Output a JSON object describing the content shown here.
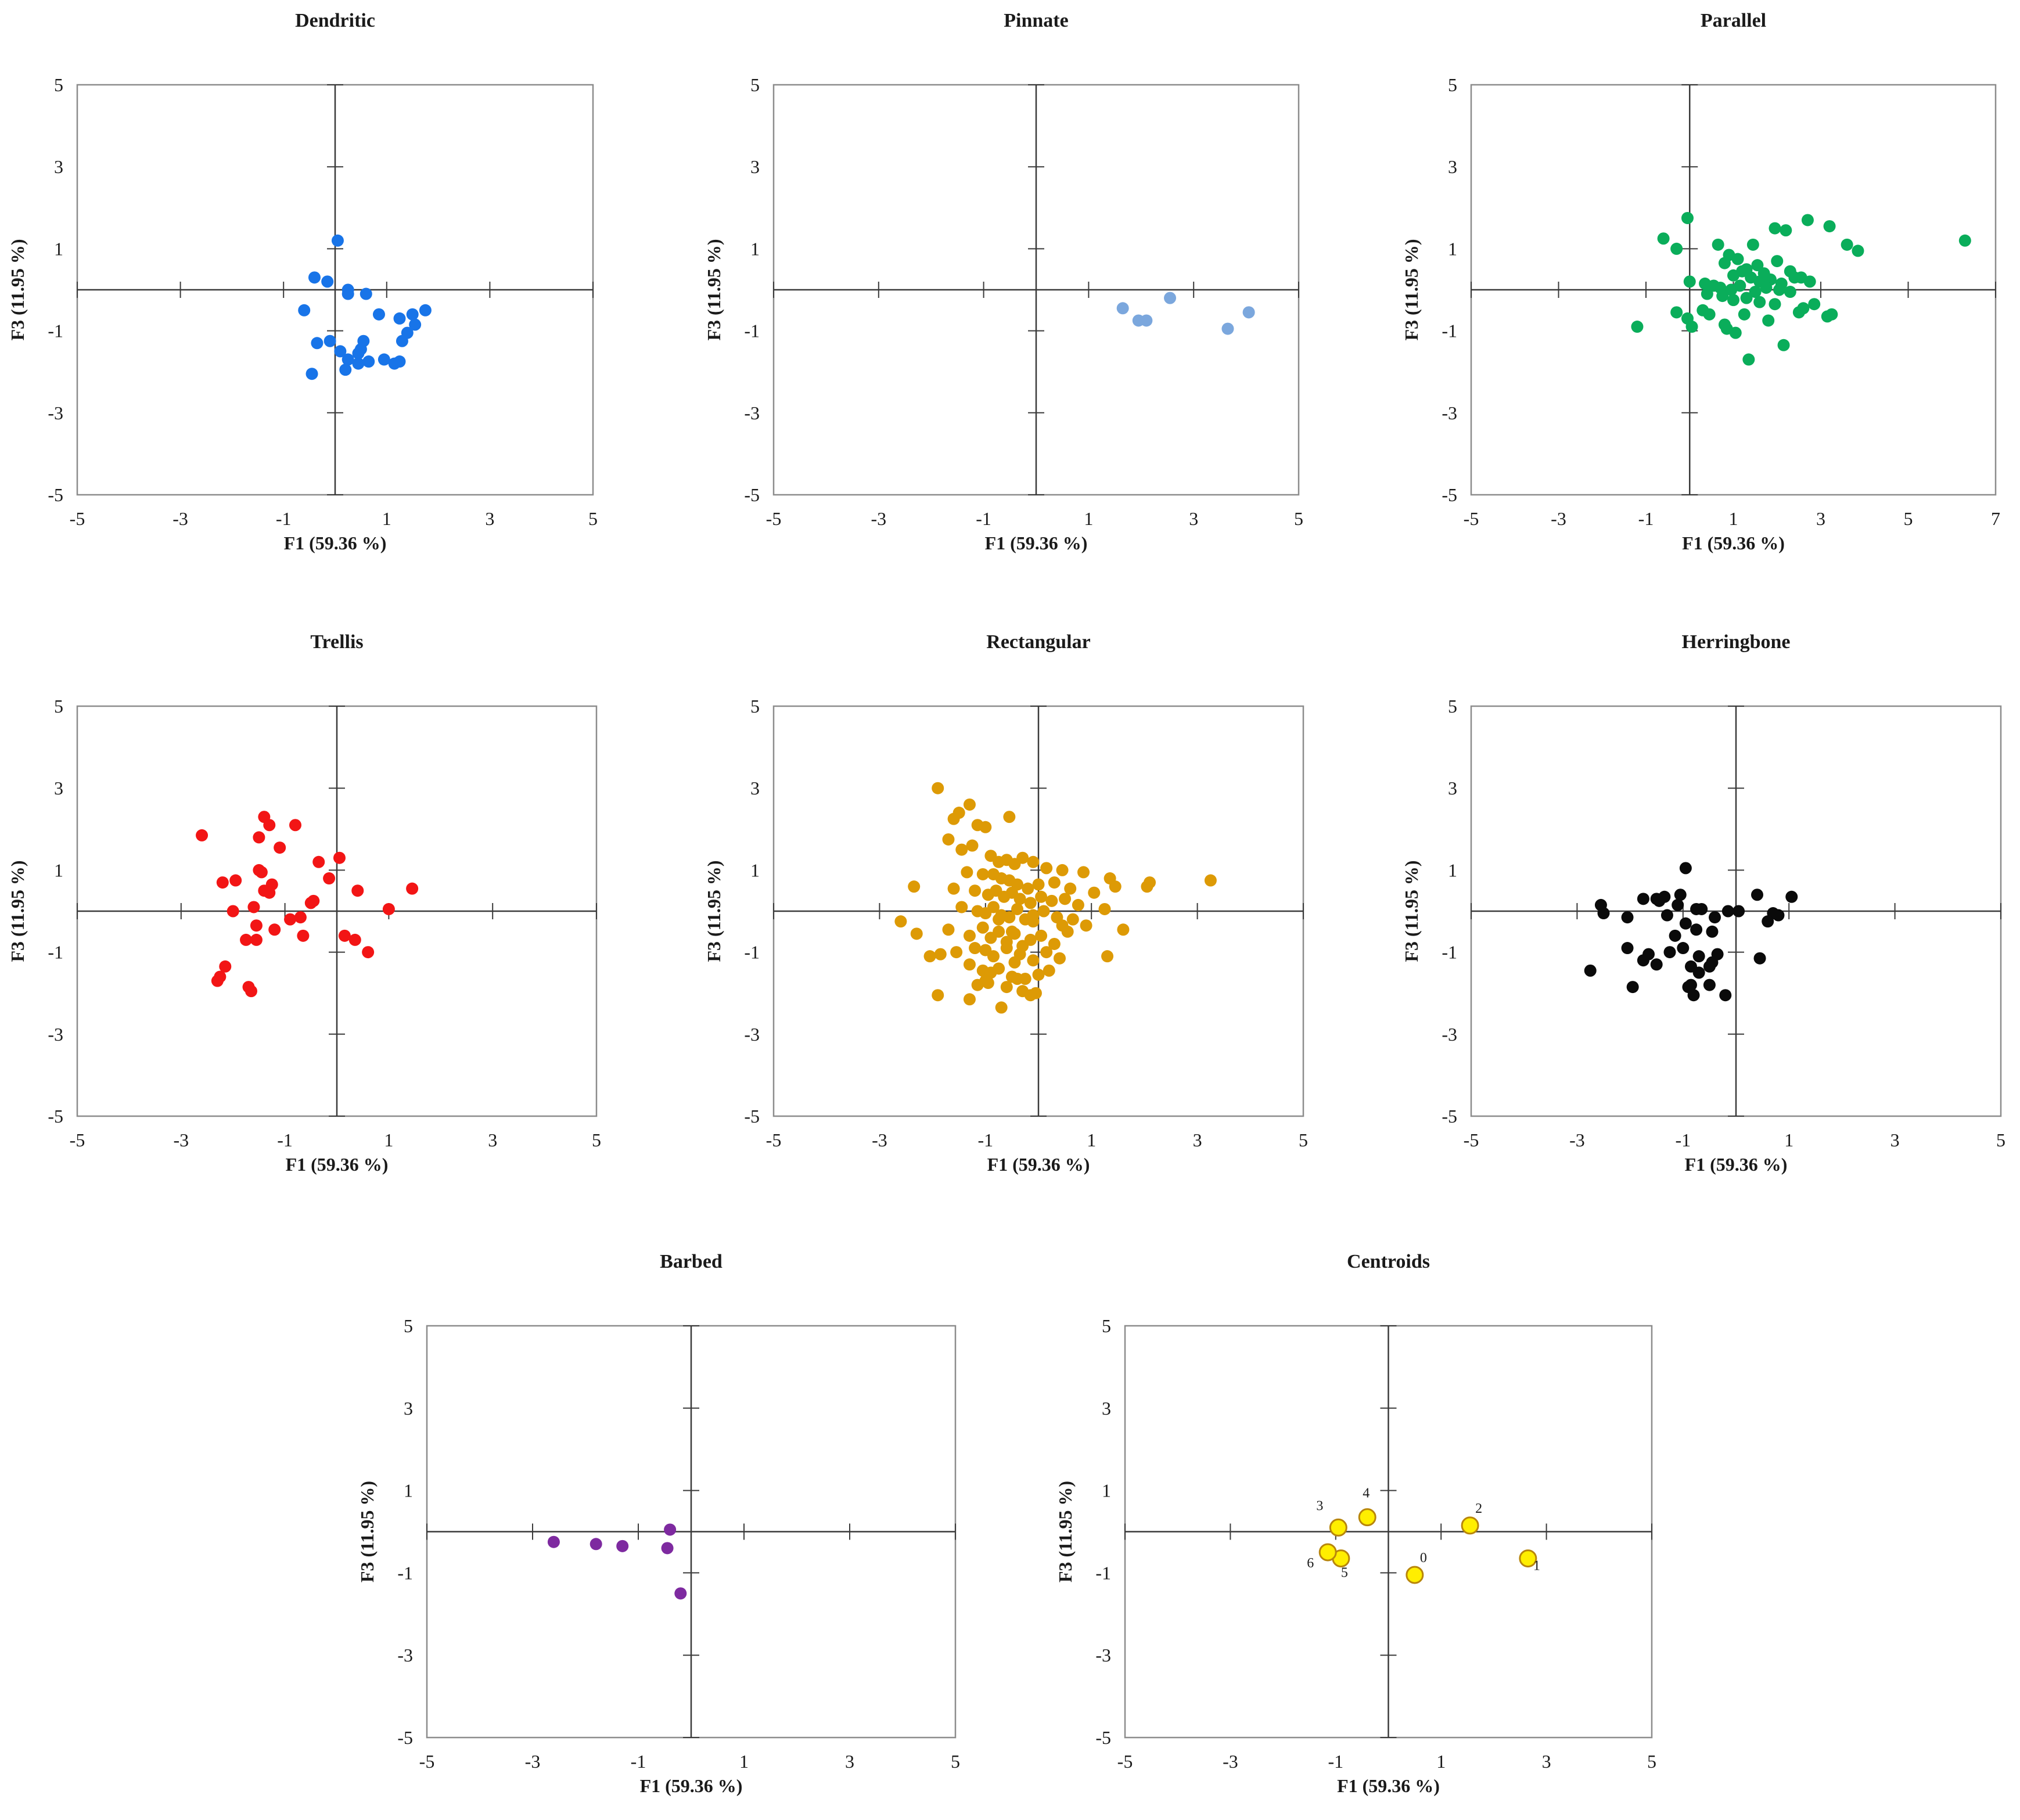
{
  "chart_data": [
    {
      "type": "scatter",
      "title": "Dendritic",
      "xlabel": "F1 (59.36 %)",
      "ylabel": "F3 (11.95 %)",
      "xlim": [
        -5,
        5
      ],
      "ylim": [
        -5,
        5
      ],
      "xticks": [
        "-5",
        "-3",
        "-1",
        "1",
        "3",
        "5"
      ],
      "yticks": [
        "5",
        "3",
        "1",
        "-1",
        "-3",
        "-5"
      ],
      "color": "#1874e8",
      "x": [
        0.05,
        -0.4,
        -0.15,
        0.25,
        0.25,
        -0.6,
        0.6,
        0.85,
        1.5,
        1.75,
        1.25,
        1.55,
        1.4,
        1.3,
        -0.35,
        -0.1,
        0.1,
        0.5,
        0.45,
        0.55,
        0.25,
        0.45,
        0.65,
        0.95,
        1.15,
        1.25,
        0.2,
        -0.45
      ],
      "y": [
        1.2,
        0.3,
        0.2,
        0.0,
        -0.1,
        -0.5,
        -0.1,
        -0.6,
        -0.6,
        -0.5,
        -0.7,
        -0.85,
        -1.05,
        -1.25,
        -1.3,
        -1.25,
        -1.5,
        -1.45,
        -1.55,
        -1.25,
        -1.7,
        -1.8,
        -1.75,
        -1.7,
        -1.8,
        -1.75,
        -1.95,
        -2.05
      ]
    },
    {
      "type": "scatter",
      "title": "Pinnate",
      "xlabel": "F1 (59.36 %)",
      "ylabel": "F3 (11.95 %)",
      "xlim": [
        -5,
        5
      ],
      "ylim": [
        -5,
        5
      ],
      "xticks": [
        "-5",
        "-3",
        "-1",
        "1",
        "3",
        "5"
      ],
      "yticks": [
        "5",
        "3",
        "1",
        "-1",
        "-3",
        "-5"
      ],
      "color": "#7ba7dd",
      "x": [
        1.65,
        1.95,
        2.1,
        2.55,
        3.65,
        4.05
      ],
      "y": [
        -0.45,
        -0.75,
        -0.75,
        -0.2,
        -0.95,
        -0.55
      ]
    },
    {
      "type": "scatter",
      "title": "Parallel",
      "xlabel": "F1 (59.36 %)",
      "ylabel": "F3 (11.95 %)",
      "xlim": [
        -5,
        7
      ],
      "ylim": [
        -5,
        5
      ],
      "xticks": [
        "-5",
        "-3",
        "-1",
        "1",
        "3",
        "5",
        "7"
      ],
      "yticks": [
        "5",
        "3",
        "1",
        "-1",
        "-3",
        "-5"
      ],
      "color": "#0aad5a",
      "x": [
        -0.05,
        -0.6,
        -0.3,
        0.65,
        1.45,
        1.95,
        2.2,
        2.7,
        3.2,
        3.6,
        3.85,
        6.3,
        0.9,
        1.1,
        1.3,
        1.55,
        1.7,
        2.0,
        2.3,
        2.55,
        0.8,
        1.0,
        1.2,
        1.4,
        1.6,
        1.85,
        2.1,
        2.4,
        2.75,
        0.0,
        0.35,
        0.55,
        0.7,
        0.95,
        1.15,
        1.5,
        1.75,
        2.05,
        2.3,
        0.4,
        0.75,
        1.0,
        1.3,
        1.6,
        1.95,
        2.6,
        3.15,
        3.25,
        -0.3,
        -0.05,
        0.3,
        0.8,
        1.25,
        1.8,
        2.5,
        2.85,
        -1.2,
        0.05,
        0.45,
        0.85,
        1.05,
        2.15,
        1.35
      ],
      "y": [
        1.75,
        1.25,
        1.0,
        1.1,
        1.1,
        1.5,
        1.45,
        1.7,
        1.55,
        1.1,
        0.95,
        1.2,
        0.85,
        0.75,
        0.5,
        0.6,
        0.4,
        0.7,
        0.45,
        0.3,
        0.65,
        0.35,
        0.45,
        0.3,
        0.2,
        0.25,
        0.15,
        0.3,
        0.2,
        0.2,
        0.15,
        0.1,
        0.05,
        0.0,
        0.1,
        -0.05,
        0.05,
        0.0,
        -0.05,
        -0.1,
        -0.15,
        -0.25,
        -0.2,
        -0.3,
        -0.35,
        -0.45,
        -0.65,
        -0.6,
        -0.55,
        -0.7,
        -0.5,
        -0.85,
        -0.6,
        -0.75,
        -0.55,
        -0.35,
        -0.9,
        -0.9,
        -0.6,
        -0.95,
        -1.05,
        -1.35,
        -1.7
      ]
    },
    {
      "type": "scatter",
      "title": "Trellis",
      "xlabel": "F1 (59.36 %)",
      "ylabel": "F3 (11.95 %)",
      "xlim": [
        -5,
        5
      ],
      "ylim": [
        -5,
        5
      ],
      "xticks": [
        "-5",
        "-3",
        "-1",
        "1",
        "3",
        "5"
      ],
      "yticks": [
        "5",
        "3",
        "1",
        "-1",
        "-3",
        "-5"
      ],
      "color": "#f21515",
      "x": [
        -2.6,
        -1.4,
        -1.3,
        -1.5,
        -0.8,
        -1.1,
        -2.2,
        -1.95,
        -1.45,
        -1.5,
        0.05,
        -1.25,
        -1.3,
        -1.4,
        -0.35,
        -0.5,
        -0.45,
        -0.15,
        0.4,
        1.45,
        1.0,
        -1.6,
        -2.0,
        -0.7,
        -0.9,
        -1.55,
        -1.2,
        -0.65,
        0.15,
        0.35,
        -1.75,
        -1.55,
        0.6,
        -2.15,
        -2.25,
        -2.3,
        -1.7,
        -1.65
      ],
      "y": [
        1.85,
        2.3,
        2.1,
        1.8,
        2.1,
        1.55,
        0.7,
        0.75,
        0.95,
        1.0,
        1.3,
        0.65,
        0.45,
        0.5,
        1.2,
        0.2,
        0.25,
        0.8,
        0.5,
        0.55,
        0.05,
        0.1,
        0.0,
        -0.15,
        -0.2,
        -0.35,
        -0.45,
        -0.6,
        -0.6,
        -0.7,
        -0.7,
        -0.7,
        -1.0,
        -1.35,
        -1.6,
        -1.7,
        -1.85,
        -1.95
      ]
    },
    {
      "type": "scatter",
      "title": "Rectangular",
      "xlabel": "F1 (59.36 %)",
      "ylabel": "F3 (11.95 %)",
      "xlim": [
        -5,
        5
      ],
      "ylim": [
        -5,
        5
      ],
      "xticks": [
        "-5",
        "-3",
        "-1",
        "1",
        "3",
        "5"
      ],
      "yticks": [
        "5",
        "3",
        "1",
        "-1",
        "-3",
        "-5"
      ],
      "color": "#dd9a05",
      "x": [
        -1.9,
        -1.5,
        -1.6,
        -1.3,
        -1.15,
        -1.0,
        -0.55,
        -1.7,
        -1.45,
        -1.25,
        -0.9,
        -0.75,
        -0.6,
        -0.45,
        -0.3,
        -0.1,
        0.15,
        0.45,
        0.85,
        1.35,
        2.05,
        3.25,
        -1.35,
        -1.05,
        -0.85,
        -0.7,
        -0.55,
        -0.4,
        -0.2,
        0.0,
        0.3,
        0.6,
        1.05,
        1.45,
        2.1,
        -2.35,
        -1.6,
        -1.2,
        -0.95,
        -0.8,
        -0.65,
        -0.5,
        -0.35,
        -0.15,
        0.05,
        0.25,
        0.5,
        0.75,
        1.25,
        -2.6,
        -1.45,
        -1.15,
        -1.0,
        -0.85,
        -0.7,
        -0.55,
        -0.4,
        -0.25,
        -0.1,
        0.1,
        0.35,
        0.65,
        0.9,
        1.6,
        -2.3,
        -1.7,
        -1.3,
        -1.05,
        -0.9,
        -0.75,
        -0.6,
        -0.45,
        -0.3,
        -0.15,
        0.05,
        0.3,
        0.55,
        -1.0,
        -0.85,
        -0.6,
        -0.35,
        -0.1,
        0.15,
        0.4,
        1.3,
        -2.05,
        -1.85,
        -1.55,
        -1.3,
        -1.05,
        -0.75,
        -0.5,
        -0.25,
        0.0,
        0.2,
        -0.95,
        -0.6,
        -0.3,
        -0.05,
        -1.3,
        -0.7,
        -0.4,
        -1.15,
        -0.15,
        -1.9,
        -0.9,
        -0.45,
        -1.0,
        -1.2,
        0.45,
        -0.75,
        -0.5,
        -0.1
      ],
      "y": [
        3.0,
        2.4,
        2.25,
        2.6,
        2.1,
        2.05,
        2.3,
        1.75,
        1.5,
        1.6,
        1.35,
        1.2,
        1.25,
        1.15,
        1.3,
        1.2,
        1.05,
        1.0,
        0.95,
        0.8,
        0.6,
        0.75,
        0.95,
        0.9,
        0.9,
        0.8,
        0.75,
        0.65,
        0.55,
        0.65,
        0.7,
        0.55,
        0.45,
        0.6,
        0.7,
        0.6,
        0.55,
        0.5,
        0.4,
        0.5,
        0.35,
        0.45,
        0.3,
        0.2,
        0.35,
        0.25,
        0.3,
        0.15,
        0.05,
        -0.25,
        0.1,
        0.0,
        -0.05,
        0.1,
        -0.1,
        -0.15,
        0.05,
        -0.2,
        -0.1,
        0.0,
        -0.15,
        -0.2,
        -0.35,
        -0.45,
        -0.55,
        -0.45,
        -0.6,
        -0.4,
        -0.65,
        -0.5,
        -0.75,
        -0.55,
        -0.85,
        -0.7,
        -0.6,
        -0.8,
        -0.5,
        -0.95,
        -1.1,
        -0.9,
        -1.05,
        -1.2,
        -1.0,
        -1.15,
        -1.1,
        -1.1,
        -1.05,
        -1.0,
        -1.3,
        -1.45,
        -1.4,
        -1.6,
        -1.65,
        -1.55,
        -1.45,
        -1.75,
        -1.85,
        -1.95,
        -2.0,
        -2.15,
        -2.35,
        -1.65,
        -1.8,
        -2.05,
        -2.05,
        -1.5,
        -1.25,
        -1.7,
        -0.9,
        -0.35,
        -0.2,
        -0.5,
        -0.25
      ]
    },
    {
      "type": "scatter",
      "title": "Herringbone",
      "xlabel": "F1 (59.36 %)",
      "ylabel": "F3 (11.95 %)",
      "xlim": [
        -5,
        5
      ],
      "ylim": [
        -5,
        5
      ],
      "xticks": [
        "-5",
        "-3",
        "-1",
        "1",
        "3",
        "5"
      ],
      "yticks": [
        "5",
        "3",
        "1",
        "-1",
        "-3",
        "-5"
      ],
      "color": "#0a0a0a",
      "x": [
        -0.95,
        -1.05,
        -1.45,
        -1.5,
        -1.75,
        -1.35,
        -1.1,
        -0.75,
        -0.4,
        0.4,
        1.05,
        0.7,
        -2.55,
        -2.5,
        -2.05,
        -1.3,
        -0.65,
        -0.15,
        0.05,
        0.8,
        0.6,
        -0.95,
        -0.75,
        -1.15,
        -0.45,
        -2.05,
        -1.75,
        -1.5,
        -1.65,
        -1.25,
        -1.0,
        -0.7,
        -0.5,
        -0.85,
        -0.35,
        -0.45,
        0.45,
        -2.75,
        -1.95,
        -0.7,
        -0.85,
        -0.5,
        -0.2,
        -0.8,
        -0.9
      ],
      "y": [
        1.05,
        0.4,
        0.25,
        0.3,
        0.3,
        0.35,
        0.15,
        0.05,
        -0.15,
        0.4,
        0.35,
        -0.05,
        0.15,
        -0.05,
        -0.15,
        -0.1,
        0.05,
        0.0,
        0.0,
        -0.1,
        -0.25,
        -0.3,
        -0.45,
        -0.6,
        -0.5,
        -0.9,
        -1.2,
        -1.3,
        -1.05,
        -1.0,
        -0.9,
        -1.1,
        -1.35,
        -1.35,
        -1.05,
        -1.25,
        -1.15,
        -1.45,
        -1.85,
        -1.5,
        -1.8,
        -1.8,
        -2.05,
        -2.05,
        -1.85
      ]
    },
    {
      "type": "scatter",
      "title": "Barbed",
      "xlabel": "F1 (59.36 %)",
      "ylabel": "F3 (11.95 %)",
      "xlim": [
        -5,
        5
      ],
      "ylim": [
        -5,
        5
      ],
      "xticks": [
        "-5",
        "-3",
        "-1",
        "1",
        "3",
        "5"
      ],
      "yticks": [
        "5",
        "3",
        "1",
        "-1",
        "-3",
        "-5"
      ],
      "color": "#7e2aa0",
      "x": [
        -2.6,
        -1.8,
        -1.3,
        -0.45,
        -0.4,
        -0.2
      ],
      "y": [
        -0.25,
        -0.3,
        -0.35,
        -0.4,
        0.05,
        -1.5
      ]
    },
    {
      "type": "scatter",
      "title": "Centroids",
      "xlabel": "F1 (59.36 %)",
      "ylabel": "F3 (11.95 %)",
      "xlim": [
        -5,
        5
      ],
      "ylim": [
        -5,
        5
      ],
      "xticks": [
        "-5",
        "-3",
        "-1",
        "1",
        "3",
        "5"
      ],
      "yticks": [
        "5",
        "3",
        "1",
        "-1",
        "-3",
        "-5"
      ],
      "color": "#ffee00",
      "stroke": "#b8860b",
      "labels": [
        "0",
        "1",
        "2",
        "3",
        "4",
        "5",
        "6"
      ],
      "x": [
        0.5,
        2.65,
        1.55,
        -0.95,
        -0.4,
        -0.9,
        -1.15
      ],
      "y": [
        -1.05,
        -0.65,
        0.15,
        0.1,
        0.35,
        -0.65,
        -0.5
      ]
    }
  ]
}
